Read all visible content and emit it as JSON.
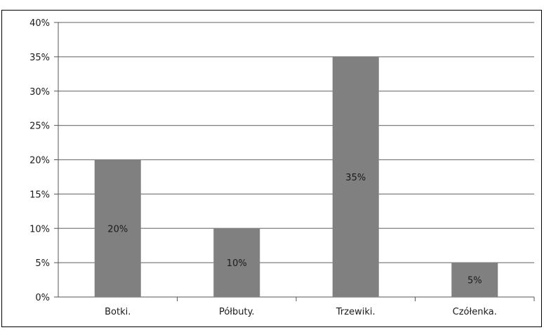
{
  "chart_data": {
    "type": "bar",
    "categories": [
      "Botki.",
      "Półbuty.",
      "Trzewiki.",
      "Czółenka."
    ],
    "values": [
      20,
      10,
      35,
      5
    ],
    "data_labels": [
      "20%",
      "10%",
      "35%",
      "5%"
    ],
    "y_ticks": [
      "0%",
      "5%",
      "10%",
      "15%",
      "20%",
      "25%",
      "30%",
      "35%",
      "40%"
    ],
    "ylim": [
      0,
      40
    ],
    "grid": true,
    "bar_color": "#808080",
    "gridline_color": "#7f7f7f",
    "title": "",
    "xlabel": "",
    "ylabel": ""
  }
}
